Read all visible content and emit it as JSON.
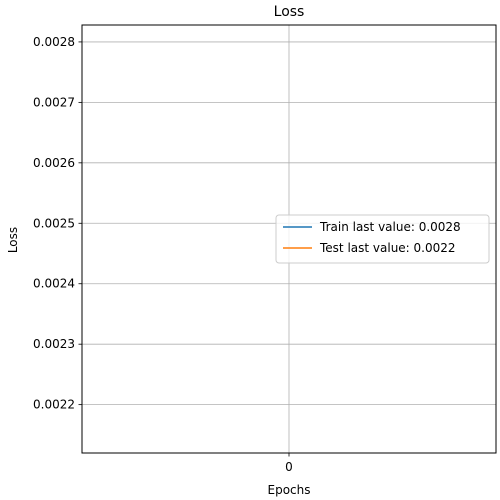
{
  "chart_data": {
    "type": "line",
    "title": "Loss",
    "xlabel": "Epochs",
    "ylabel": "Loss",
    "x": [
      0
    ],
    "xticks": [
      0
    ],
    "xlim": [
      -0.055,
      0.055
    ],
    "ylim": [
      0.00212,
      0.002828
    ],
    "yticks": [
      0.0022,
      0.0023,
      0.0024,
      0.0025,
      0.0026,
      0.0027,
      0.0028
    ],
    "ytick_labels": [
      "0.0022",
      "0.0023",
      "0.0024",
      "0.0025",
      "0.0026",
      "0.0027",
      "0.0028"
    ],
    "grid": true,
    "legend_position": "center-right",
    "series": [
      {
        "name": "Train last value: 0.0028",
        "values": [
          0.0028
        ],
        "color": "#1f77b4"
      },
      {
        "name": "Test last value: 0.0022",
        "values": [
          0.0022
        ],
        "color": "#ff7f0e"
      }
    ]
  }
}
